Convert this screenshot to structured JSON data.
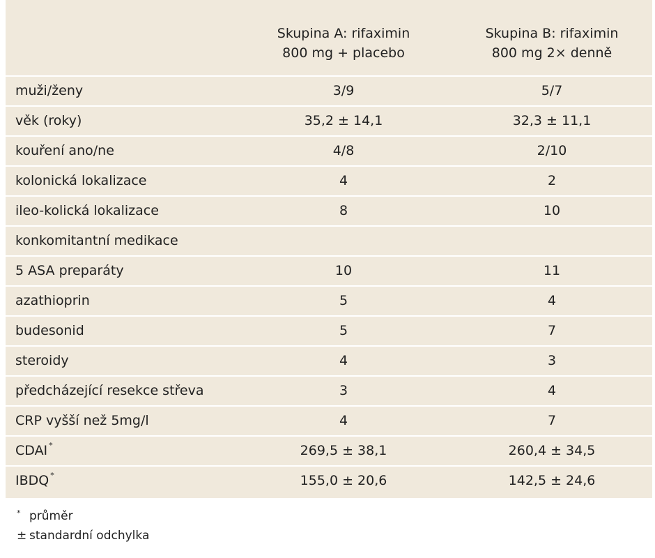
{
  "table": {
    "header": {
      "col_a_line1": "Skupina A: rifaximin",
      "col_a_line2": "800 mg + placebo",
      "col_b_line1": "Skupina B: rifaximin",
      "col_b_line2": "800 mg 2× denně"
    },
    "rows": [
      {
        "label": "muži/ženy",
        "a": "3/9",
        "b": "5/7"
      },
      {
        "label": "věk (roky)",
        "a": "35,2 ± 14,1",
        "b": "32,3 ± 11,1"
      },
      {
        "label": "kouření ano/ne",
        "a": "4/8",
        "b": "2/10"
      },
      {
        "label": "kolonická lokalizace",
        "a": "4",
        "b": "2"
      },
      {
        "label": "ileo-kolická lokalizace",
        "a": "8",
        "b": "10"
      },
      {
        "label": "konkomitantní medikace",
        "a": "",
        "b": ""
      },
      {
        "label": "5 ASA preparáty",
        "a": "10",
        "b": "11"
      },
      {
        "label": "azathioprin",
        "a": "5",
        "b": "4"
      },
      {
        "label": "budesonid",
        "a": "5",
        "b": "7"
      },
      {
        "label": "steroidy",
        "a": "4",
        "b": "3"
      },
      {
        "label": "předcházející resekce střeva",
        "a": "3",
        "b": "4"
      },
      {
        "label": "CRP vyšší než 5mg/l",
        "a": "4",
        "b": "7"
      },
      {
        "label": "CDAI",
        "label_sup": "*",
        "a": "269,5 ± 38,1",
        "b": "260,4 ± 34,5"
      },
      {
        "label": "IBDQ",
        "label_sup": "*",
        "a": "155,0 ± 20,6",
        "b": "142,5 ± 24,6"
      }
    ]
  },
  "footnotes": [
    {
      "mark": "*",
      "text": "průměr"
    },
    {
      "mark": "±",
      "text": "standardní odchylka"
    }
  ],
  "colors": {
    "panel_background": "#f0e9dc",
    "row_separator": "#ffffff",
    "text": "#222222"
  }
}
